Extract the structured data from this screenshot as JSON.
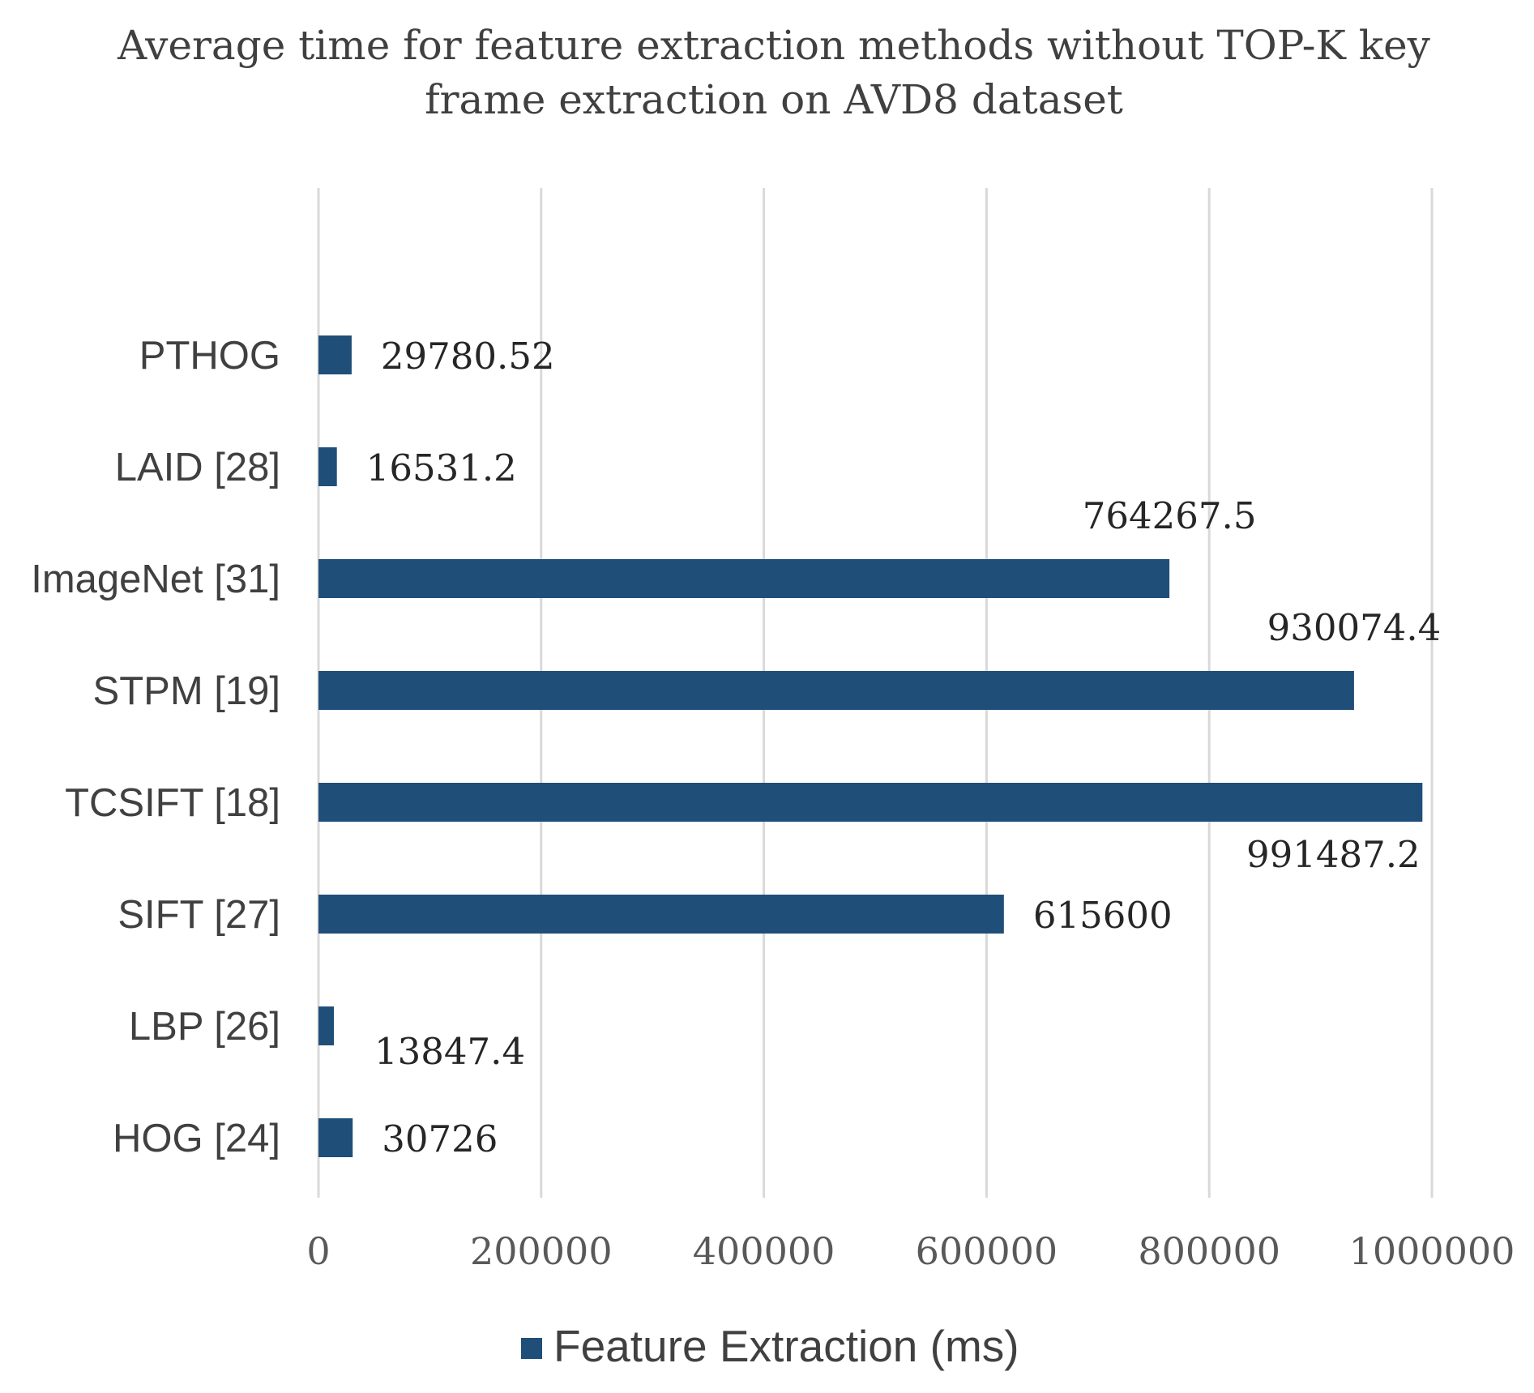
{
  "chart_data": {
    "type": "bar",
    "orientation": "horizontal",
    "title": "Average time for feature extraction methods without TOP-K key frame extraction on AVD8 dataset",
    "title_lines": [
      "Average time for feature extraction methods without TOP-K key",
      "frame extraction on AVD8 dataset"
    ],
    "categories": [
      "PTHOG",
      "LAID [28]",
      "ImageNet [31]",
      "STPM [19]",
      "TCSIFT [18]",
      "SIFT [27]",
      "LBP [26]",
      "HOG [24]"
    ],
    "series": [
      {
        "name": "Feature Extraction (ms)",
        "color": "#1f4e79",
        "values": [
          29780.52,
          16531.2,
          764267.5,
          930074.4,
          991487.2,
          615600,
          13847.4,
          30726
        ],
        "value_labels": [
          "29780.52",
          "16531.2",
          "764267.5",
          "930074.4",
          "991487.2",
          "615600",
          "13847.4",
          "30726"
        ]
      }
    ],
    "xlim": [
      0,
      1000000
    ],
    "xticks": [
      0,
      200000,
      400000,
      600000,
      800000,
      1000000
    ],
    "xtick_labels": [
      "0",
      "200000",
      "400000",
      "600000",
      "800000",
      "1000000"
    ],
    "xlabel": "",
    "ylabel": "",
    "grid": "vertical",
    "legend": {
      "position": "bottom",
      "entries": [
        "Feature Extraction (ms)"
      ]
    }
  }
}
